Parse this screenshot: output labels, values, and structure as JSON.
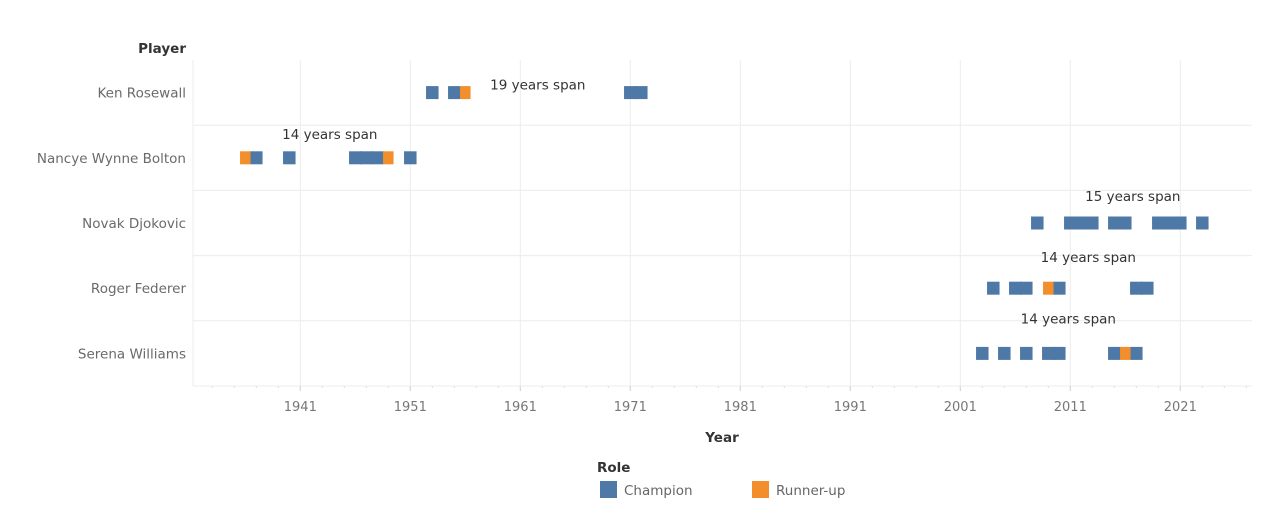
{
  "chart_data": {
    "type": "gantt",
    "row_header": "Player",
    "xlabel": "Year",
    "xlim": [
      1931.3,
      2027.5
    ],
    "x_ticks": [
      "1941",
      "1951",
      "1961",
      "1971",
      "1981",
      "1991",
      "2001",
      "2011",
      "2021"
    ],
    "grid": true,
    "colors": {
      "Champion": "#4e79a7",
      "Runner-up": "#f28e2b"
    },
    "legend": {
      "title": "Role",
      "placement": "bottom",
      "items": [
        "Champion",
        "Runner-up"
      ]
    },
    "rows": [
      {
        "player": "Ken Rosewall",
        "span_label": "19 years span",
        "champion": [
          1953,
          1955,
          1971,
          1972
        ],
        "runner_up": [
          1956
        ]
      },
      {
        "player": "Nancye Wynne Bolton",
        "span_label": "14 years span",
        "champion": [
          1937,
          1940,
          1946,
          1947,
          1948,
          1951
        ],
        "runner_up": [
          1936,
          1949
        ]
      },
      {
        "player": "Novak Djokovic",
        "span_label": "15 years span",
        "champion": [
          2008,
          2011,
          2012,
          2013,
          2015,
          2016,
          2019,
          2020,
          2021,
          2023
        ],
        "runner_up": []
      },
      {
        "player": "Roger Federer",
        "span_label": "14 years span",
        "champion": [
          2004,
          2006,
          2007,
          2010,
          2017,
          2018
        ],
        "runner_up": [
          2009
        ]
      },
      {
        "player": "Serena Williams",
        "span_label": "14 years span",
        "champion": [
          2003,
          2005,
          2007,
          2009,
          2010,
          2015,
          2017
        ],
        "runner_up": [
          2016
        ]
      }
    ]
  }
}
